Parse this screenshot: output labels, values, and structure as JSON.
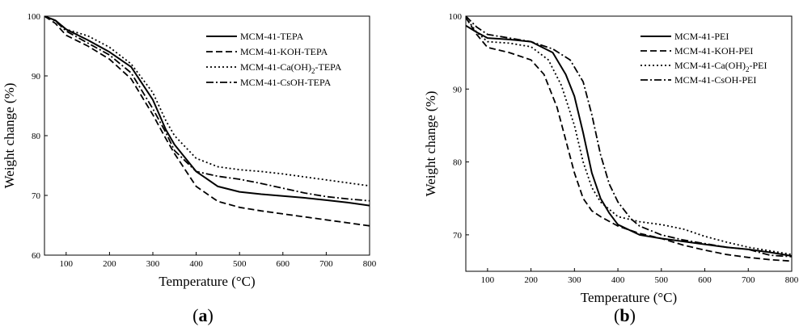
{
  "chart_data": [
    {
      "type": "line",
      "panel_label": "a",
      "xlabel": "Temperature (°C)",
      "ylabel": "Weight change (%)",
      "xlim": [
        50,
        800
      ],
      "ylim": [
        60,
        100
      ],
      "xticks": [
        100,
        200,
        300,
        400,
        500,
        600,
        700,
        800
      ],
      "yticks": [
        60,
        70,
        80,
        90,
        100
      ],
      "legend_position": "top-right",
      "series": [
        {
          "name": "MCM-41-TEPA",
          "dash": "solid",
          "points": [
            [
              50,
              100
            ],
            [
              75,
              99.3
            ],
            [
              100,
              97.8
            ],
            [
              150,
              96
            ],
            [
              200,
              94
            ],
            [
              250,
              91.5
            ],
            [
              300,
              86
            ],
            [
              330,
              81
            ],
            [
              350,
              78.5
            ],
            [
              400,
              74
            ],
            [
              450,
              71.5
            ],
            [
              500,
              70.6
            ],
            [
              550,
              70.2
            ],
            [
              600,
              69.9
            ],
            [
              650,
              69.6
            ],
            [
              700,
              69.2
            ],
            [
              750,
              68.8
            ],
            [
              800,
              68.3
            ]
          ]
        },
        {
          "name": "MCM-41-KOH-TEPA",
          "dash": "dashed",
          "points": [
            [
              50,
              100
            ],
            [
              75,
              98.8
            ],
            [
              100,
              96.8
            ],
            [
              150,
              95
            ],
            [
              200,
              92.8
            ],
            [
              250,
              89.5
            ],
            [
              300,
              83.5
            ],
            [
              330,
              79.5
            ],
            [
              350,
              77
            ],
            [
              400,
              71.5
            ],
            [
              450,
              69
            ],
            [
              500,
              68
            ],
            [
              550,
              67.4
            ],
            [
              600,
              66.9
            ],
            [
              650,
              66.4
            ],
            [
              700,
              65.9
            ],
            [
              750,
              65.4
            ],
            [
              800,
              64.9
            ]
          ]
        },
        {
          "name": "MCM-41-Ca(OH)2-TEPA",
          "name_base": "MCM-41-Ca(OH)",
          "name_sub": "2",
          "name_tail": "-TEPA",
          "dash": "dotted",
          "points": [
            [
              50,
              100
            ],
            [
              75,
              99.3
            ],
            [
              100,
              97.8
            ],
            [
              150,
              96.7
            ],
            [
              200,
              94.8
            ],
            [
              250,
              92
            ],
            [
              300,
              87.2
            ],
            [
              330,
              82.5
            ],
            [
              350,
              80
            ],
            [
              400,
              76.2
            ],
            [
              450,
              74.8
            ],
            [
              500,
              74.3
            ],
            [
              550,
              74
            ],
            [
              600,
              73.6
            ],
            [
              650,
              73.1
            ],
            [
              700,
              72.6
            ],
            [
              750,
              72.1
            ],
            [
              800,
              71.6
            ]
          ]
        },
        {
          "name": "MCM-41-CsOH-TEPA",
          "dash": "dashdot",
          "points": [
            [
              50,
              100
            ],
            [
              75,
              99.2
            ],
            [
              100,
              97.5
            ],
            [
              150,
              95.5
            ],
            [
              200,
              93.5
            ],
            [
              250,
              90.5
            ],
            [
              300,
              84.5
            ],
            [
              330,
              80.5
            ],
            [
              350,
              77.5
            ],
            [
              400,
              74
            ],
            [
              450,
              73.2
            ],
            [
              500,
              72.7
            ],
            [
              550,
              72
            ],
            [
              600,
              71.2
            ],
            [
              650,
              70.4
            ],
            [
              700,
              69.8
            ],
            [
              750,
              69.4
            ],
            [
              800,
              69.1
            ]
          ]
        }
      ]
    },
    {
      "type": "line",
      "panel_label": "b",
      "xlabel": "Temperature (°C)",
      "ylabel": "Weight change (%)",
      "xlim": [
        50,
        800
      ],
      "ylim": [
        65,
        100
      ],
      "xticks": [
        100,
        200,
        300,
        400,
        500,
        600,
        700,
        800
      ],
      "yticks": [
        70,
        80,
        90,
        100
      ],
      "legend_position": "top-right",
      "series": [
        {
          "name": "MCM-41-PEI",
          "dash": "solid",
          "points": [
            [
              50,
              98.7
            ],
            [
              75,
              97.8
            ],
            [
              100,
              97
            ],
            [
              150,
              96.8
            ],
            [
              200,
              96.5
            ],
            [
              250,
              95
            ],
            [
              280,
              92
            ],
            [
              300,
              89
            ],
            [
              320,
              84
            ],
            [
              340,
              78.5
            ],
            [
              360,
              75
            ],
            [
              380,
              73
            ],
            [
              400,
              71.4
            ],
            [
              450,
              70
            ],
            [
              500,
              69.5
            ],
            [
              550,
              69.1
            ],
            [
              600,
              68.7
            ],
            [
              650,
              68.3
            ],
            [
              700,
              68
            ],
            [
              750,
              67.6
            ],
            [
              800,
              67.1
            ]
          ]
        },
        {
          "name": "MCM-41-KOH-PEI",
          "dash": "dashed",
          "points": [
            [
              50,
              99.8
            ],
            [
              75,
              97.5
            ],
            [
              100,
              95.7
            ],
            [
              150,
              95
            ],
            [
              200,
              94
            ],
            [
              230,
              92
            ],
            [
              260,
              87.5
            ],
            [
              280,
              83
            ],
            [
              300,
              78.5
            ],
            [
              320,
              75
            ],
            [
              340,
              73.3
            ],
            [
              360,
              72.5
            ],
            [
              400,
              71.2
            ],
            [
              450,
              70.2
            ],
            [
              500,
              69.5
            ],
            [
              550,
              68.6
            ],
            [
              600,
              67.9
            ],
            [
              650,
              67.3
            ],
            [
              700,
              66.9
            ],
            [
              750,
              66.6
            ],
            [
              800,
              66.4
            ]
          ]
        },
        {
          "name": "MCM-41-Ca(OH)2-PEI",
          "name_base": "MCM-41-Ca(OH)",
          "name_sub": "2",
          "name_tail": "-PEI",
          "dash": "dotted",
          "points": [
            [
              50,
              99.8
            ],
            [
              75,
              97.8
            ],
            [
              100,
              96.5
            ],
            [
              150,
              96.3
            ],
            [
              200,
              95.8
            ],
            [
              240,
              94
            ],
            [
              270,
              90.5
            ],
            [
              300,
              85
            ],
            [
              320,
              80
            ],
            [
              340,
              76.5
            ],
            [
              360,
              74.5
            ],
            [
              400,
              72.5
            ],
            [
              450,
              71.8
            ],
            [
              500,
              71.4
            ],
            [
              550,
              70.8
            ],
            [
              600,
              69.8
            ],
            [
              650,
              69
            ],
            [
              700,
              68.3
            ],
            [
              750,
              67.8
            ],
            [
              800,
              67.3
            ]
          ]
        },
        {
          "name": "MCM-41-CsOH-PEI",
          "dash": "dashdot",
          "points": [
            [
              50,
              100
            ],
            [
              75,
              98.5
            ],
            [
              100,
              97.5
            ],
            [
              150,
              97
            ],
            [
              200,
              96.5
            ],
            [
              250,
              95.5
            ],
            [
              290,
              94
            ],
            [
              320,
              91
            ],
            [
              340,
              86.5
            ],
            [
              360,
              81
            ],
            [
              380,
              77
            ],
            [
              400,
              74.5
            ],
            [
              430,
              72.2
            ],
            [
              450,
              71.2
            ],
            [
              500,
              70
            ],
            [
              550,
              69.3
            ],
            [
              600,
              68.8
            ],
            [
              650,
              68.3
            ],
            [
              700,
              68
            ],
            [
              750,
              67.2
            ],
            [
              800,
              67
            ]
          ]
        }
      ]
    }
  ]
}
